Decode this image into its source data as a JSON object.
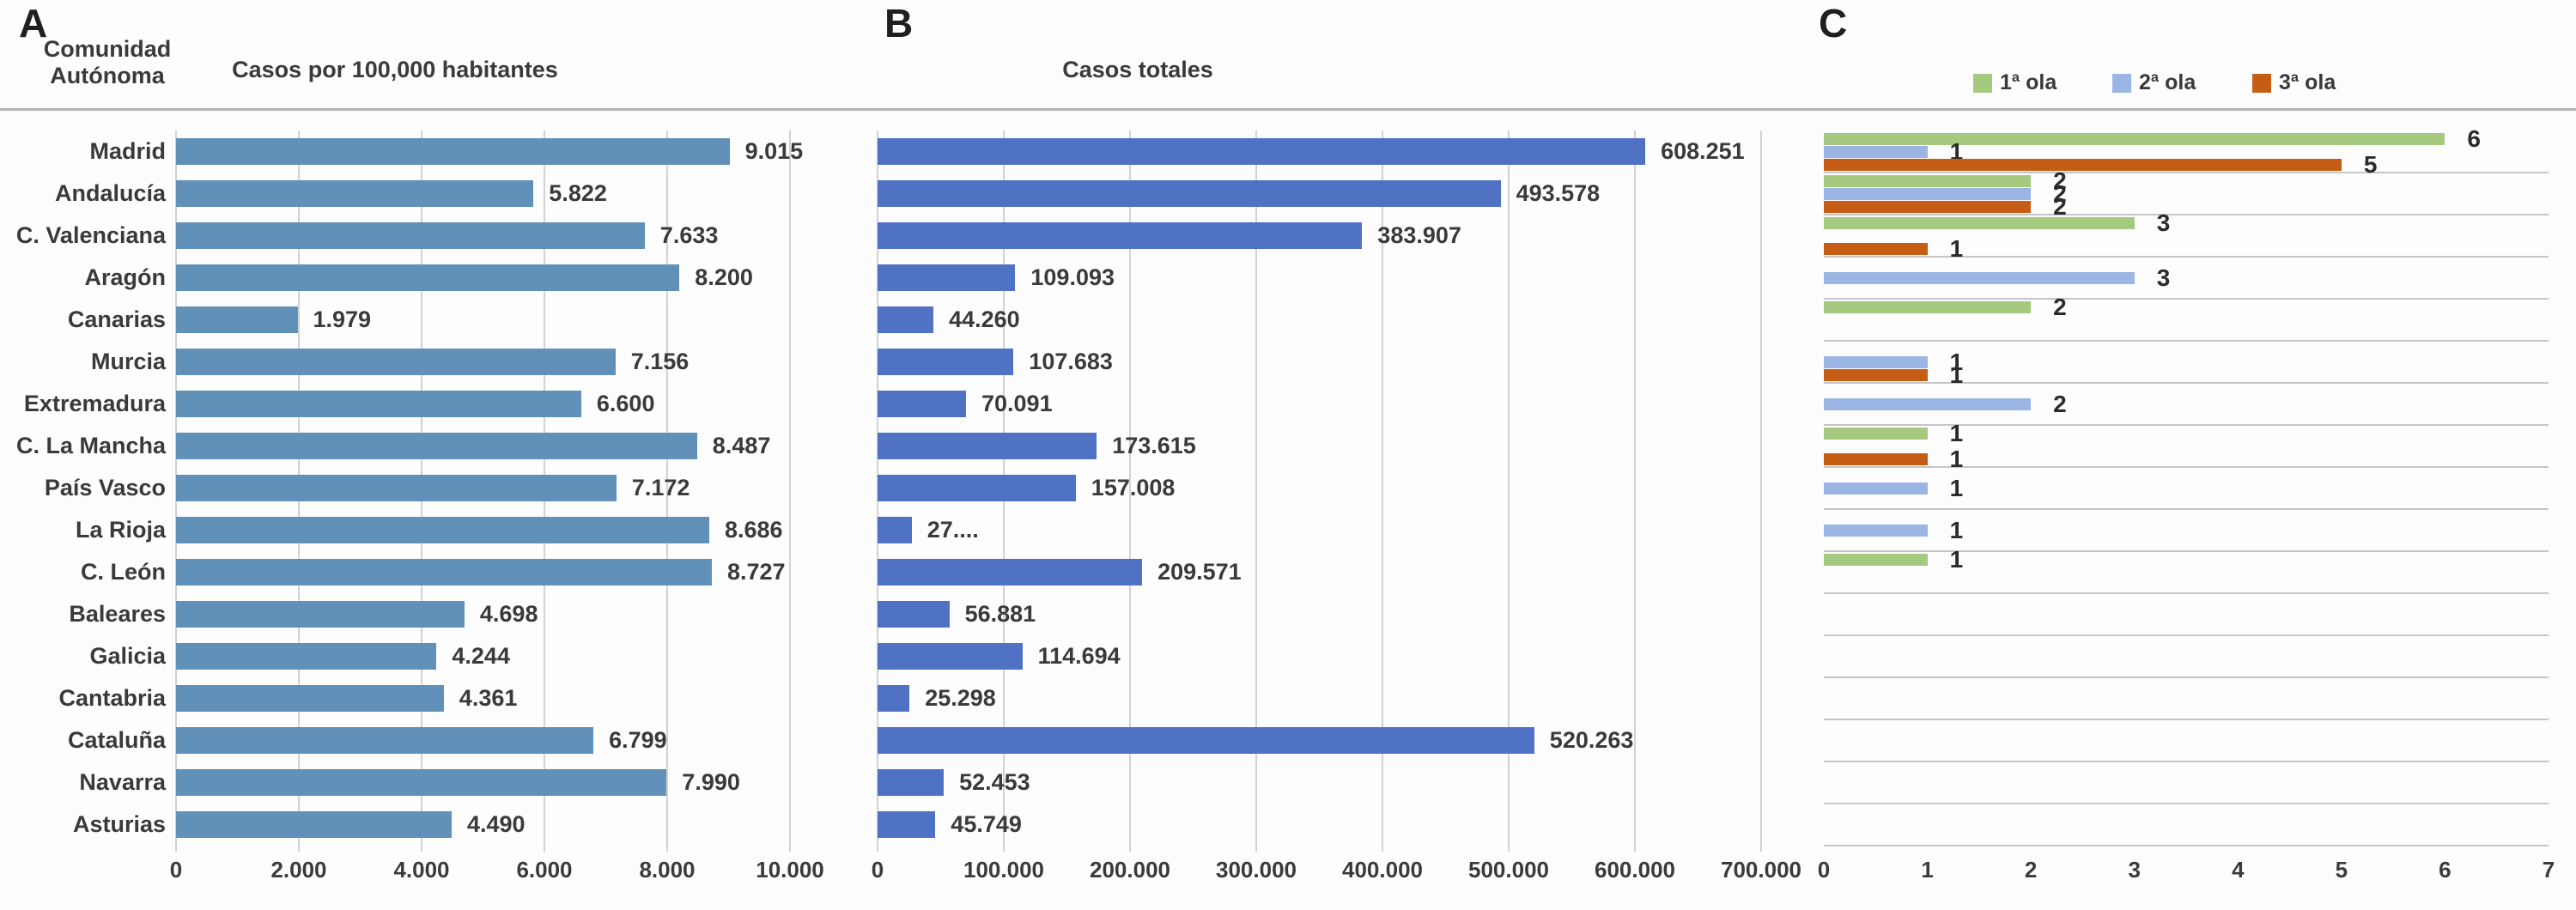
{
  "panels": {
    "a": {
      "letter": "A",
      "y_axis_title_line1": "Comunidad",
      "y_axis_title_line2": "Autónoma",
      "title": "Casos por 100,000 habitantes"
    },
    "b": {
      "letter": "B",
      "title": "Casos totales"
    },
    "c": {
      "letter": "C"
    }
  },
  "legend": {
    "items": [
      {
        "label": "1ª ola",
        "color": "#A5C97E"
      },
      {
        "label": "2ª ola",
        "color": "#9BB5E4"
      },
      {
        "label": "3ª ola",
        "color": "#C55D15"
      }
    ]
  },
  "colors": {
    "panel_a_bar": "#6190B8",
    "panel_b_bar": "#4F72C4",
    "wave1_green": "#A5C97E",
    "wave2_blue": "#9BB5E4",
    "wave3_orange": "#C55D15",
    "gridline": "#d2d2d2",
    "text": "#3a3a3a"
  },
  "categories": [
    "Madrid",
    "Andalucía",
    "C. Valenciana",
    "Aragón",
    "Canarias",
    "Murcia",
    "Extremadura",
    "C. La Mancha",
    "País Vasco",
    "La Rioja",
    "C. León",
    "Baleares",
    "Galicia",
    "Cantabria",
    "Cataluña",
    "Navarra",
    "Asturias"
  ],
  "chart_data": [
    {
      "panel": "A",
      "type": "bar",
      "orientation": "horizontal",
      "title": "Casos por 100,000 habitantes",
      "categories": [
        "Madrid",
        "Andalucía",
        "C. Valenciana",
        "Aragón",
        "Canarias",
        "Murcia",
        "Extremadura",
        "C. La Mancha",
        "País Vasco",
        "La Rioja",
        "C. León",
        "Baleares",
        "Galicia",
        "Cantabria",
        "Cataluña",
        "Navarra",
        "Asturias"
      ],
      "values": [
        9015,
        5822,
        7633,
        8200,
        1979,
        7156,
        6600,
        8487,
        7172,
        8686,
        8727,
        4698,
        4244,
        4361,
        6799,
        7990,
        4490
      ],
      "value_labels": [
        "9.015",
        "5.822",
        "7.633",
        "8.200",
        "1.979",
        "7.156",
        "6.600",
        "8.487",
        "7.172",
        "8.686",
        "8.727",
        "4.698",
        "4.244",
        "4.361",
        "6.799",
        "7.990",
        "4.490"
      ],
      "xlim": [
        0,
        10000
      ],
      "x_ticks": [
        0,
        2000,
        4000,
        6000,
        8000,
        10000
      ],
      "x_tick_labels": [
        "0",
        "2.000",
        "4.000",
        "6.000",
        "8.000",
        "10.000"
      ],
      "grid": "vertical",
      "bar_color": "#6190B8"
    },
    {
      "panel": "B",
      "type": "bar",
      "orientation": "horizontal",
      "title": "Casos totales",
      "categories": [
        "Madrid",
        "Andalucía",
        "C. Valenciana",
        "Aragón",
        "Canarias",
        "Murcia",
        "Extremadura",
        "C. La Mancha",
        "País Vasco",
        "La Rioja",
        "C. León",
        "Baleares",
        "Galicia",
        "Cantabria",
        "Cataluña",
        "Navarra",
        "Asturias"
      ],
      "values": [
        608251,
        493578,
        383907,
        109093,
        44260,
        107683,
        70091,
        173615,
        157008,
        27000,
        209571,
        56881,
        114694,
        25298,
        520263,
        52453,
        45749
      ],
      "value_labels": [
        "608.251",
        "493.578",
        "383.907",
        "109.093",
        "44.260",
        "107.683",
        "70.091",
        "173.615",
        "157.008",
        "27....",
        "209.571",
        "56.881",
        "114.694",
        "25.298",
        "520.263",
        "52.453",
        "45.749"
      ],
      "xlim": [
        0,
        700000
      ],
      "x_ticks": [
        0,
        100000,
        200000,
        300000,
        400000,
        500000,
        600000,
        700000
      ],
      "x_tick_labels": [
        "0",
        "100.000",
        "200.000",
        "300.000",
        "400.000",
        "500.000",
        "600.000",
        "700.000"
      ],
      "grid": "vertical",
      "bar_color": "#4F72C4"
    },
    {
      "panel": "C",
      "type": "bar",
      "orientation": "horizontal",
      "categories": [
        "Madrid",
        "Andalucía",
        "C. Valenciana",
        "Aragón",
        "Canarias",
        "Murcia",
        "Extremadura",
        "C. La Mancha",
        "País Vasco",
        "La Rioja",
        "C. León",
        "Baleares",
        "Galicia",
        "Cantabria",
        "Cataluña",
        "Navarra",
        "Asturias"
      ],
      "series": [
        {
          "name": "1ª ola",
          "color": "#A5C97E",
          "values": [
            6,
            2,
            3,
            null,
            2,
            null,
            null,
            1,
            null,
            null,
            1,
            null,
            null,
            null,
            null,
            null,
            null
          ]
        },
        {
          "name": "2ª ola",
          "color": "#9BB5E4",
          "values": [
            1,
            2,
            null,
            3,
            null,
            1,
            2,
            null,
            1,
            1,
            null,
            null,
            null,
            null,
            null,
            null,
            null
          ]
        },
        {
          "name": "3ª ola",
          "color": "#C55D15",
          "values": [
            5,
            2,
            1,
            null,
            null,
            1,
            null,
            1,
            null,
            null,
            null,
            null,
            null,
            null,
            null,
            null,
            null
          ]
        }
      ],
      "xlim": [
        0,
        7
      ],
      "x_ticks": [
        0,
        1,
        2,
        3,
        4,
        5,
        6,
        7
      ],
      "x_tick_labels": [
        "0",
        "1",
        "2",
        "3",
        "4",
        "5",
        "6",
        "7"
      ],
      "grid": "horizontal",
      "legend_position": "top"
    }
  ]
}
